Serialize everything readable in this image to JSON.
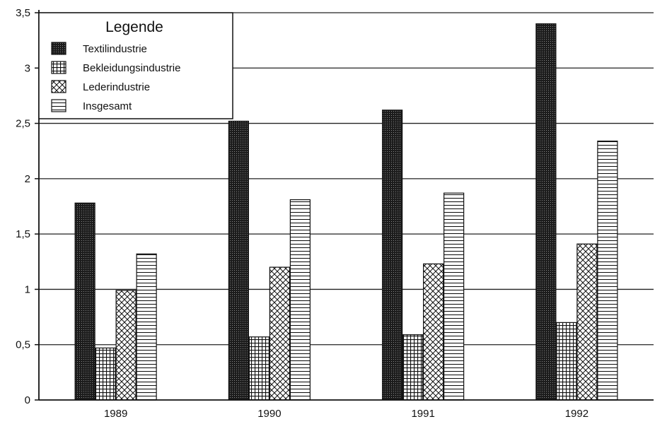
{
  "chart_data": {
    "type": "bar",
    "categories": [
      "1989",
      "1990",
      "1991",
      "1992"
    ],
    "series": [
      {
        "name": "Textilindustrie",
        "values": [
          1.78,
          2.52,
          2.62,
          3.4
        ]
      },
      {
        "name": "Bekleidungsindustrie",
        "values": [
          0.47,
          0.57,
          0.59,
          0.7
        ]
      },
      {
        "name": "Lederindustrie",
        "values": [
          0.99,
          1.2,
          1.23,
          1.41
        ]
      },
      {
        "name": "Insgesamt",
        "values": [
          1.32,
          1.81,
          1.87,
          2.34
        ]
      }
    ],
    "ylim": [
      0,
      3.5
    ],
    "yticks": [
      "0",
      "0,5",
      "1",
      "1,5",
      "2",
      "2,5",
      "3",
      "3,5"
    ],
    "grid": true,
    "legend": {
      "title": "Legende",
      "placement": "top-left"
    }
  }
}
